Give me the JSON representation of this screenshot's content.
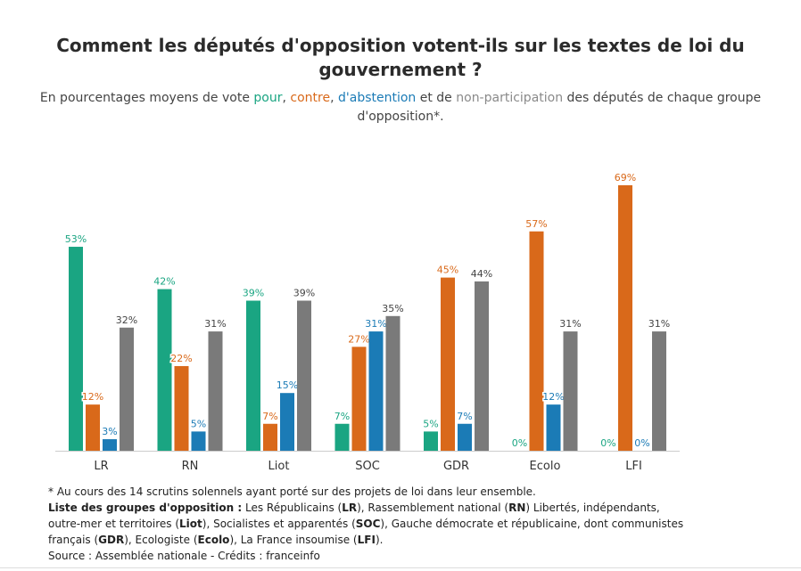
{
  "title": "Comment les députés d'opposition votent-ils sur les textes de loi du gouvernement ?",
  "subtitle": {
    "prefix": "En pourcentages moyens de vote ",
    "pour": "pour",
    "sep1": ", ",
    "contre": "contre",
    "sep2": ", ",
    "abstention": "d'abstention",
    "mid": " et de ",
    "non_participation": "non-participation",
    "suffix": " des députés de chaque groupe d'opposition*."
  },
  "colors": {
    "pour": "#1aa582",
    "contre": "#d9691a",
    "abstention": "#1b7bb6",
    "non_participation": "#7a7a7a",
    "non_participation_label": "#444444"
  },
  "chart_data": {
    "type": "bar",
    "categories": [
      "LR",
      "RN",
      "Liot",
      "SOC",
      "GDR",
      "Ecolo",
      "LFI"
    ],
    "series": [
      {
        "name": "pour",
        "values": [
          53,
          42,
          39,
          7,
          5,
          0,
          0
        ]
      },
      {
        "name": "contre",
        "values": [
          12,
          22,
          7,
          27,
          45,
          57,
          69
        ]
      },
      {
        "name": "d'abstention",
        "values": [
          3,
          5,
          15,
          31,
          7,
          12,
          0
        ]
      },
      {
        "name": "non-participation",
        "values": [
          32,
          31,
          39,
          35,
          44,
          31,
          31
        ]
      }
    ],
    "labels": [
      [
        "53%",
        "12%",
        "3%",
        "32%"
      ],
      [
        "42%",
        "22%",
        "5%",
        "31%"
      ],
      [
        "39%",
        "7%",
        "15%",
        "39%"
      ],
      [
        "7%",
        "27%",
        "31%",
        "35%"
      ],
      [
        "5%",
        "45%",
        "7%",
        "44%"
      ],
      [
        "0%",
        "57%",
        "12%",
        "31%"
      ],
      [
        "0%",
        "69%",
        "0%",
        "31%"
      ]
    ],
    "ylim": [
      0,
      75
    ],
    "grid": false,
    "legend": "in subtitle"
  },
  "footnote": {
    "line1": "* Au cours des 14 scrutins solennels ayant porté sur des projets de loi dans leur ensemble.",
    "groups_heading": "Liste des groupes d'opposition :",
    "groups": [
      {
        "text": " Les Républicains ("
      },
      {
        "abbr": "LR"
      },
      {
        "text": "), Rassemblement national ("
      },
      {
        "abbr": "RN"
      },
      {
        "text": ") Libertés, indépendants, outre-mer et territoires ("
      },
      {
        "abbr": "Liot"
      },
      {
        "text": "), Socialistes et apparentés ("
      },
      {
        "abbr": "SOC"
      },
      {
        "text": "), Gauche démocrate et républicaine, dont communistes français ("
      },
      {
        "abbr": "GDR"
      },
      {
        "text": "), Ecologiste ("
      },
      {
        "abbr": "Ecolo"
      },
      {
        "text": "), La France insoumise ("
      },
      {
        "abbr": "LFI"
      },
      {
        "text": ")."
      }
    ],
    "source": "Source : Assemblée nationale - Crédits : franceinfo"
  }
}
